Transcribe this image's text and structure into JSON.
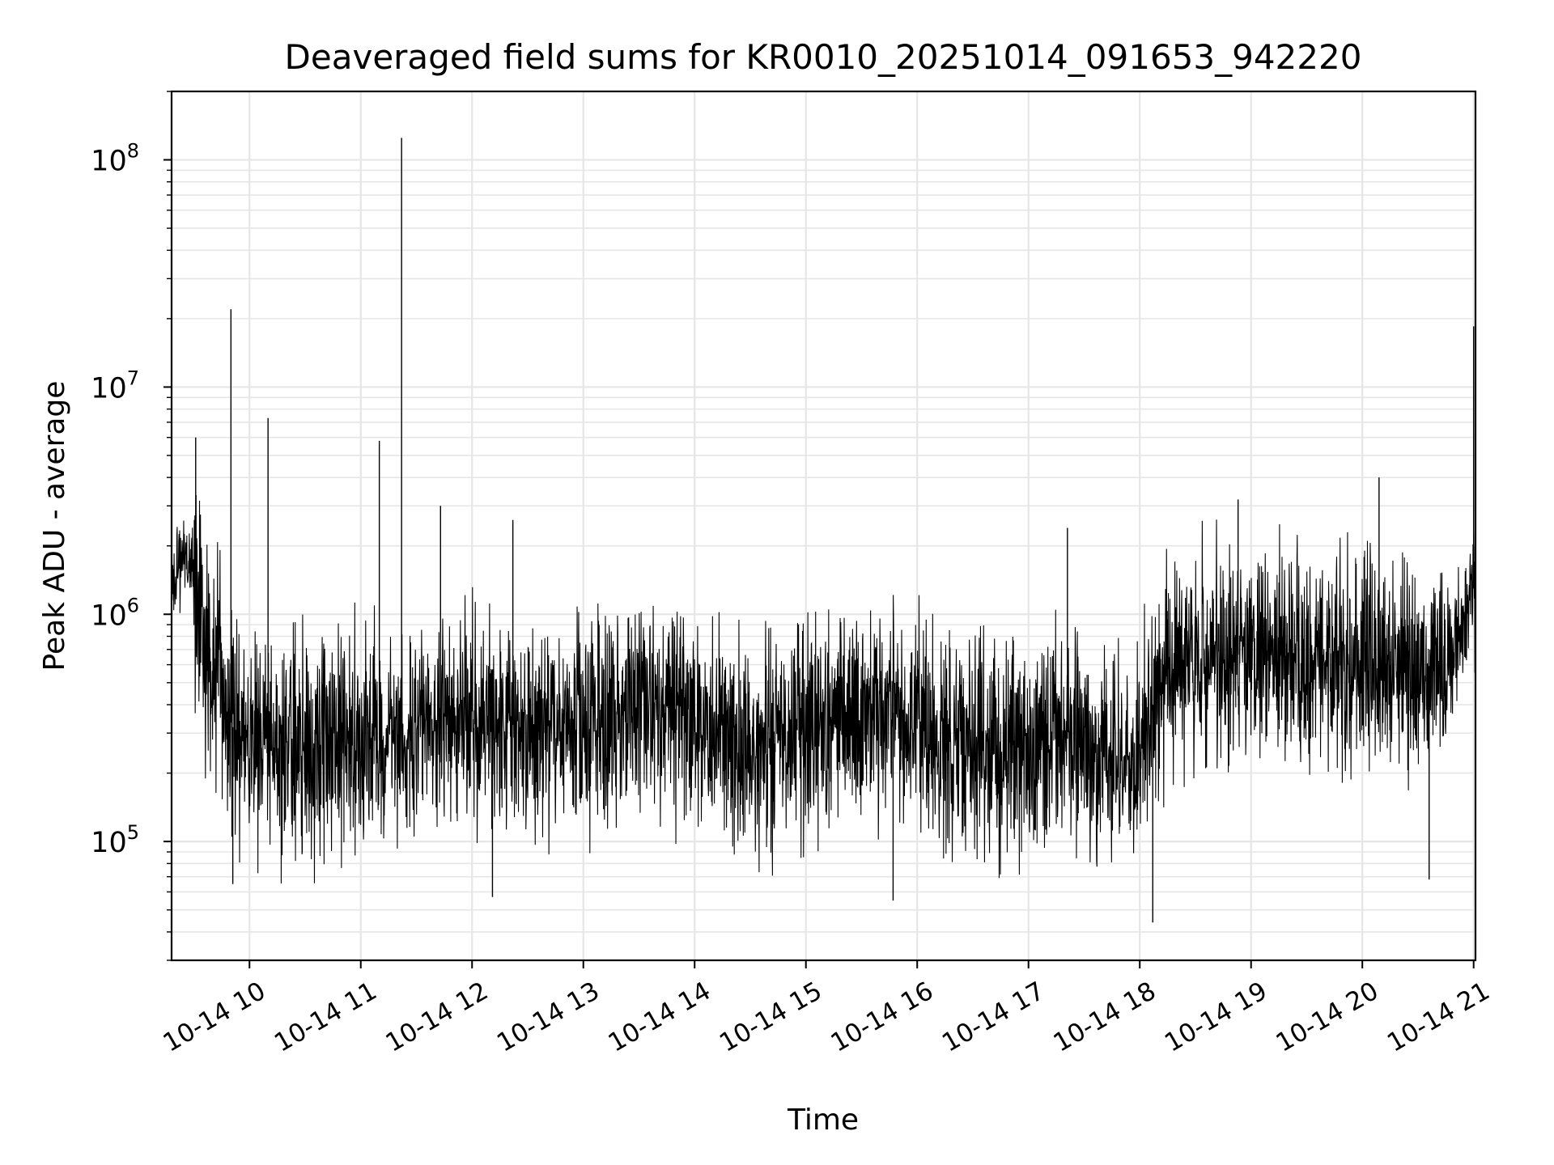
{
  "chart_data": {
    "type": "line",
    "title": "Deaveraged field sums for KR0010_20251014_091653_942220",
    "xlabel": "Time",
    "ylabel": "Peak ADU - average",
    "y_scale": "log",
    "ylim": [
      30000,
      200000000
    ],
    "xlim": [
      "2025-10-14 09:18",
      "2025-10-14 21:01"
    ],
    "grid": true,
    "grid_minor": true,
    "line_color": "#000000",
    "grid_color": "#e6e6e6",
    "x_ticks": [
      {
        "value": "2025-10-14 10:00",
        "label": "10-14 10"
      },
      {
        "value": "2025-10-14 11:00",
        "label": "10-14 11"
      },
      {
        "value": "2025-10-14 12:00",
        "label": "10-14 12"
      },
      {
        "value": "2025-10-14 13:00",
        "label": "10-14 13"
      },
      {
        "value": "2025-10-14 14:00",
        "label": "10-14 14"
      },
      {
        "value": "2025-10-14 15:00",
        "label": "10-14 15"
      },
      {
        "value": "2025-10-14 16:00",
        "label": "10-14 16"
      },
      {
        "value": "2025-10-14 17:00",
        "label": "10-14 17"
      },
      {
        "value": "2025-10-14 18:00",
        "label": "10-14 18"
      },
      {
        "value": "2025-10-14 19:00",
        "label": "10-14 19"
      },
      {
        "value": "2025-10-14 20:00",
        "label": "10-14 20"
      },
      {
        "value": "2025-10-14 21:00",
        "label": "10-14 21"
      }
    ],
    "y_ticks": [
      {
        "value": 100000,
        "base": "10",
        "exp": "5"
      },
      {
        "value": 1000000,
        "base": "10",
        "exp": "6"
      },
      {
        "value": 10000000,
        "base": "10",
        "exp": "7"
      },
      {
        "value": 100000000,
        "base": "10",
        "exp": "8"
      }
    ],
    "series": [
      {
        "x": [
          "2025-10-14 09:18",
          "2025-10-14 09:22",
          "2025-10-14 09:26",
          "2025-10-14 09:30",
          "2025-10-14 09:34",
          "2025-10-14 09:38",
          "2025-10-14 09:42",
          "2025-10-14 09:46",
          "2025-10-14 09:48",
          "2025-10-14 09:52",
          "2025-10-14 09:56",
          "2025-10-14 10:00",
          "2025-10-14 10:05",
          "2025-10-14 10:10",
          "2025-10-14 10:15",
          "2025-10-14 10:20",
          "2025-10-14 10:25",
          "2025-10-14 10:30",
          "2025-10-14 10:40",
          "2025-10-14 10:50",
          "2025-10-14 11:00",
          "2025-10-14 11:10",
          "2025-10-14 11:12",
          "2025-10-14 11:20",
          "2025-10-14 11:30",
          "2025-10-14 11:40",
          "2025-10-14 11:50",
          "2025-10-14 12:00",
          "2025-10-14 12:10",
          "2025-10-14 12:20",
          "2025-10-14 12:30",
          "2025-10-14 12:40",
          "2025-10-14 12:50",
          "2025-10-14 13:00",
          "2025-10-14 13:15",
          "2025-10-14 13:30",
          "2025-10-14 13:45",
          "2025-10-14 14:00",
          "2025-10-14 14:10",
          "2025-10-14 14:20",
          "2025-10-14 14:30",
          "2025-10-14 14:45",
          "2025-10-14 15:00",
          "2025-10-14 15:15",
          "2025-10-14 15:30",
          "2025-10-14 15:45",
          "2025-10-14 16:00",
          "2025-10-14 16:15",
          "2025-10-14 16:30",
          "2025-10-14 16:45",
          "2025-10-14 17:00",
          "2025-10-14 17:15",
          "2025-10-14 17:30",
          "2025-10-14 17:45",
          "2025-10-14 18:00",
          "2025-10-14 18:06",
          "2025-10-14 18:15",
          "2025-10-14 18:30",
          "2025-10-14 18:45",
          "2025-10-14 19:00",
          "2025-10-14 19:15",
          "2025-10-14 19:30",
          "2025-10-14 19:45",
          "2025-10-14 20:00",
          "2025-10-14 20:15",
          "2025-10-14 20:30",
          "2025-10-14 20:40",
          "2025-10-14 20:50",
          "2025-10-14 21:00",
          "2025-10-14 21:01"
        ],
        "y": [
          1300000,
          1700000,
          1800000,
          1600000,
          900000,
          700000,
          600000,
          450000,
          380000,
          300000,
          250000,
          270000,
          260000,
          280000,
          240000,
          260000,
          250000,
          230000,
          240000,
          250000,
          260000,
          280000,
          300000,
          290000,
          300000,
          320000,
          330000,
          330000,
          340000,
          330000,
          310000,
          300000,
          320000,
          340000,
          360000,
          380000,
          360000,
          340000,
          300000,
          270000,
          260000,
          280000,
          300000,
          320000,
          350000,
          380000,
          300000,
          260000,
          250000,
          260000,
          280000,
          300000,
          260000,
          220000,
          250000,
          380000,
          600000,
          700000,
          680000,
          650000,
          630000,
          640000,
          650000,
          630000,
          600000,
          580000,
          600000,
          700000,
          1300000,
          1100000
        ]
      }
    ],
    "spikes": [
      {
        "x": "2025-10-14 09:31",
        "y": 6000000
      },
      {
        "x": "2025-10-14 09:50",
        "y": 22000000
      },
      {
        "x": "2025-10-14 09:51",
        "y": 65000
      },
      {
        "x": "2025-10-14 10:10",
        "y": 7300000
      },
      {
        "x": "2025-10-14 11:10",
        "y": 5800000
      },
      {
        "x": "2025-10-14 11:22",
        "y": 125000000
      },
      {
        "x": "2025-10-14 11:43",
        "y": 3000000
      },
      {
        "x": "2025-10-14 12:11",
        "y": 57000
      },
      {
        "x": "2025-10-14 12:22",
        "y": 2600000
      },
      {
        "x": "2025-10-14 15:47",
        "y": 55000
      },
      {
        "x": "2025-10-14 17:21",
        "y": 2400000
      },
      {
        "x": "2025-10-14 18:07",
        "y": 44000
      },
      {
        "x": "2025-10-14 18:53",
        "y": 3200000
      },
      {
        "x": "2025-10-14 20:09",
        "y": 4000000
      },
      {
        "x": "2025-10-14 20:36",
        "y": 68000
      },
      {
        "x": "2025-10-14 21:00",
        "y": 18500000
      }
    ]
  }
}
